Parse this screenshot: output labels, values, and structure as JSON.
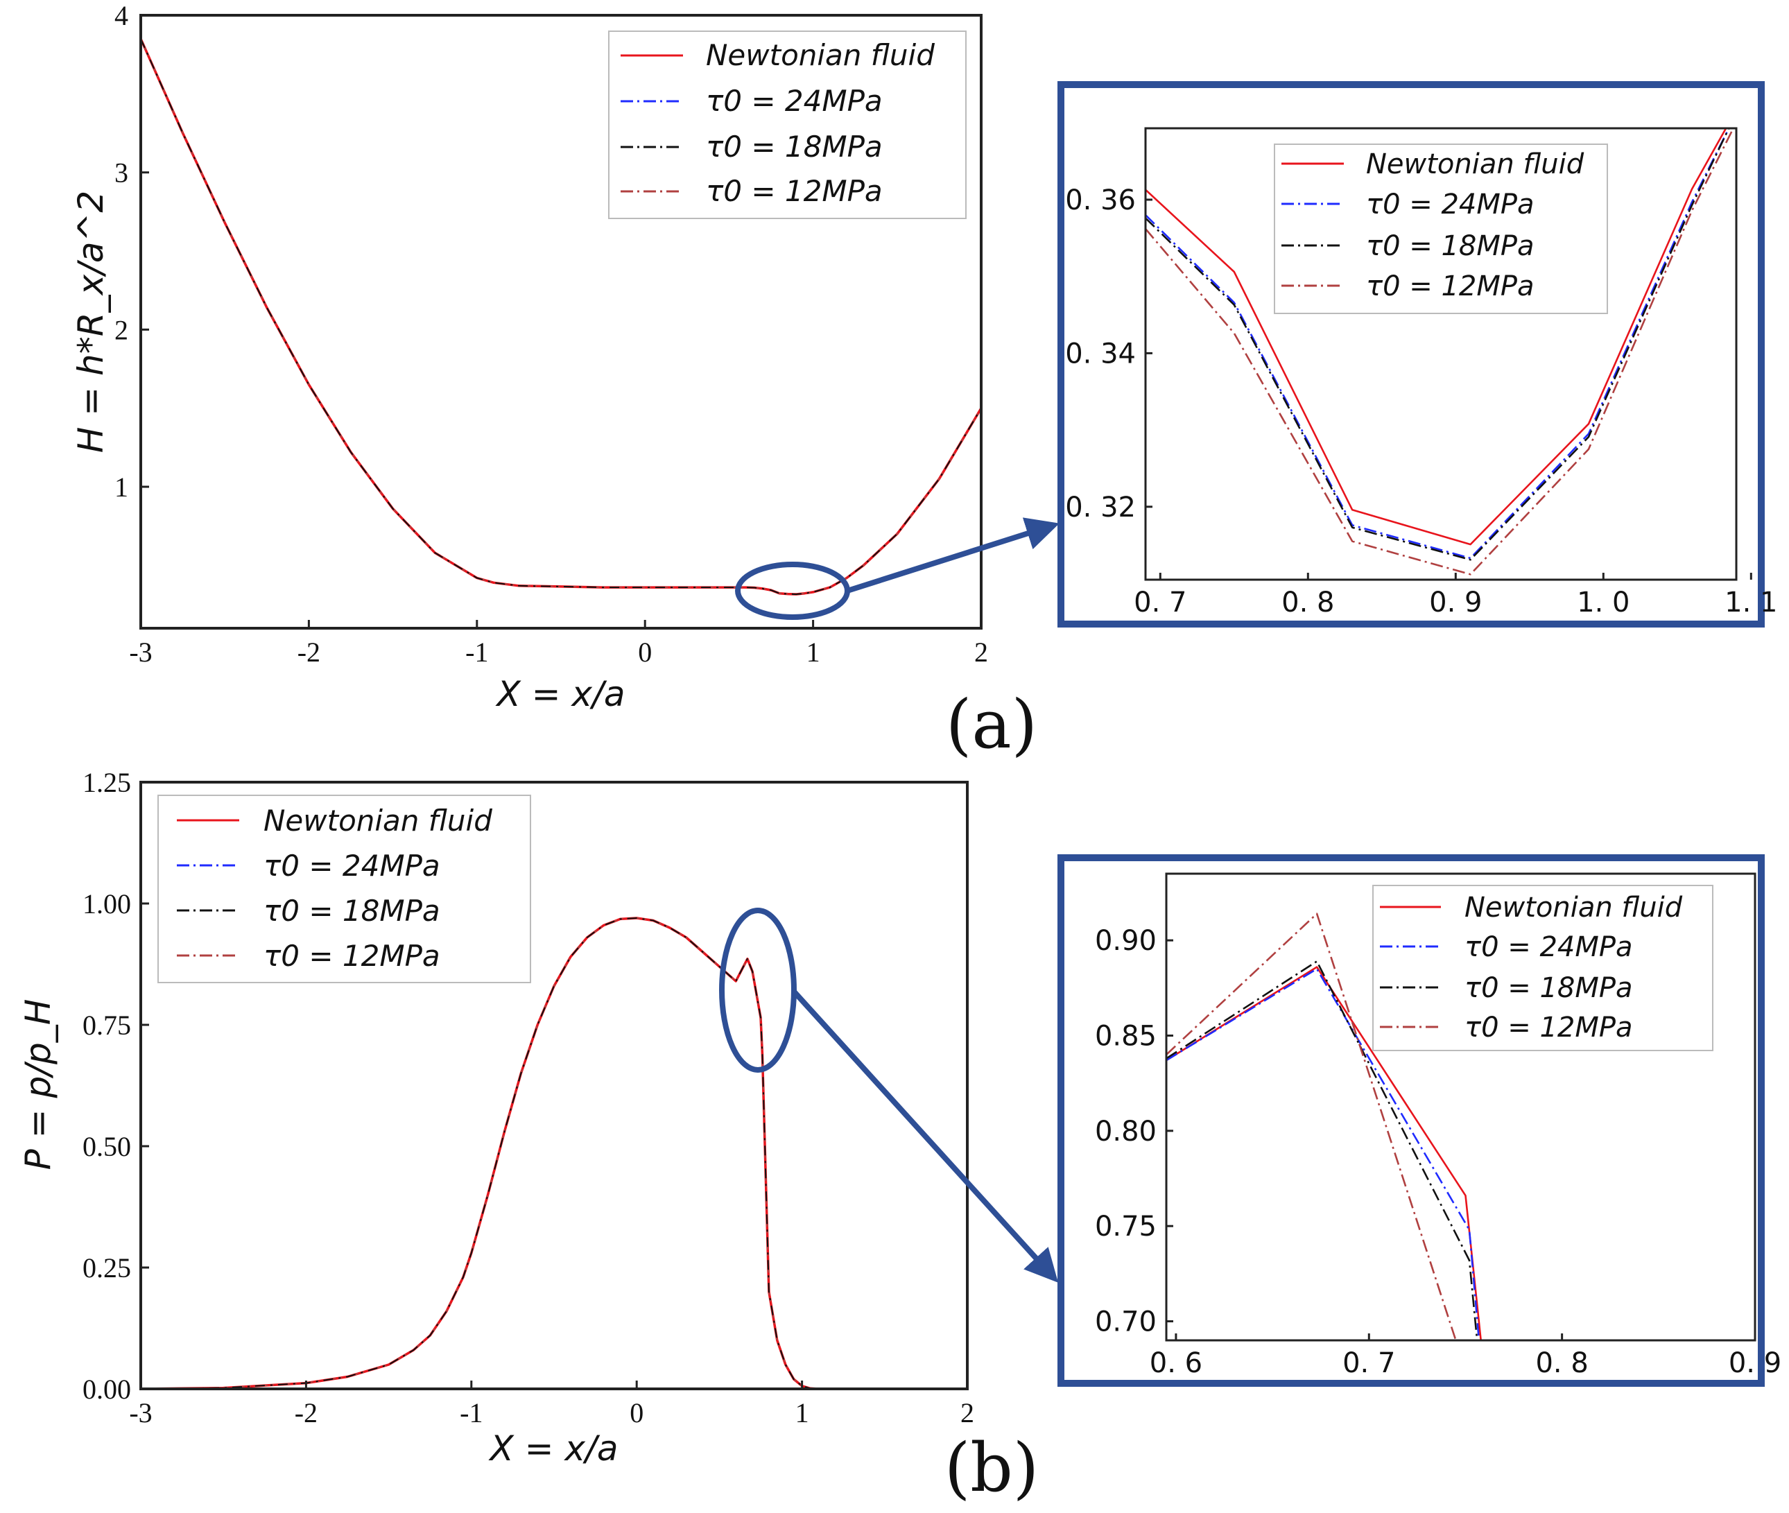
{
  "panel_a_label": "(a)",
  "panel_b_label": "(b)",
  "chart_data": [
    {
      "id": "a_main",
      "type": "line",
      "xlabel": "X = x/a",
      "ylabel": "H = h*R_x/a^2",
      "xlim": [
        -3,
        2
      ],
      "ylim": [
        0.1,
        4.0
      ],
      "xticks": [
        "-3",
        "-2",
        "-1",
        "0",
        "1",
        "2"
      ],
      "xtick_values": [
        -3,
        -2,
        -1,
        0,
        1,
        2
      ],
      "yticks": [
        "1",
        "2",
        "3",
        "4"
      ],
      "ytick_values": [
        1,
        2,
        3,
        4
      ],
      "legend": [
        "Newtonian fluid",
        "τ0 = 24MPa",
        "τ0 = 18MPa",
        "τ0 = 12MPa"
      ],
      "series": [
        {
          "name": "Newtonian fluid",
          "color": "#e8141c",
          "dash": "solid",
          "x": [
            -3,
            -2.75,
            -2.5,
            -2.25,
            -2,
            -1.75,
            -1.5,
            -1.25,
            -1.0,
            -0.9,
            -0.75,
            -0.5,
            -0.25,
            0,
            0.25,
            0.5,
            0.6,
            0.65,
            0.7,
            0.75,
            0.8,
            0.85,
            0.9,
            0.95,
            1.0,
            1.1,
            1.2,
            1.3,
            1.5,
            1.75,
            2.0
          ],
          "y": [
            3.85,
            3.25,
            2.68,
            2.14,
            1.65,
            1.22,
            0.86,
            0.58,
            0.42,
            0.39,
            0.37,
            0.365,
            0.36,
            0.36,
            0.36,
            0.36,
            0.36,
            0.358,
            0.352,
            0.342,
            0.322,
            0.318,
            0.316,
            0.322,
            0.33,
            0.36,
            0.42,
            0.5,
            0.7,
            1.05,
            1.5
          ]
        }
      ]
    },
    {
      "id": "a_inset",
      "type": "line",
      "xlim": [
        0.69,
        1.09
      ],
      "ylim": [
        0.3105,
        0.3693
      ],
      "xticks": [
        "0. 7",
        "0. 8",
        "0. 9",
        "1. 0",
        "1. 1"
      ],
      "xtick_values": [
        0.7,
        0.8,
        0.9,
        1.0,
        1.1
      ],
      "yticks": [
        "0. 32",
        "0. 34",
        "0. 36"
      ],
      "ytick_values": [
        0.32,
        0.34,
        0.36
      ],
      "legend": [
        "Newtonian fluid",
        "τ0 = 24MPa",
        "τ0 = 18MPa",
        "τ0 = 12MPa"
      ],
      "series": [
        {
          "name": "Newtonian fluid",
          "color": "#e8141c",
          "dash": "solid",
          "x": [
            0.69,
            0.75,
            0.83,
            0.91,
            0.99,
            1.06,
            1.083
          ],
          "y": [
            0.3613,
            0.3506,
            0.3196,
            0.3151,
            0.3308,
            0.3614,
            0.3693
          ]
        },
        {
          "name": "τ0 = 24MPa",
          "color": "#1f2bff",
          "dash": "dashdot",
          "x": [
            0.69,
            0.75,
            0.83,
            0.91,
            0.99,
            1.06,
            1.085
          ],
          "y": [
            0.358,
            0.3466,
            0.3176,
            0.3133,
            0.3295,
            0.3597,
            0.3693
          ]
        },
        {
          "name": "τ0 = 18MPa",
          "color": "#111111",
          "dash": "dashdot",
          "x": [
            0.69,
            0.75,
            0.83,
            0.91,
            0.99,
            1.06,
            1.085
          ],
          "y": [
            0.3576,
            0.3463,
            0.3173,
            0.3131,
            0.3291,
            0.3593,
            0.3693
          ]
        },
        {
          "name": "τ0 = 12MPa",
          "color": "#b04040",
          "dash": "dashdot",
          "x": [
            0.69,
            0.75,
            0.83,
            0.91,
            0.99,
            1.06,
            1.088
          ],
          "y": [
            0.3562,
            0.3426,
            0.3155,
            0.3112,
            0.3275,
            0.3586,
            0.3693
          ]
        }
      ]
    },
    {
      "id": "b_main",
      "type": "line",
      "xlabel": "X = x/a",
      "ylabel": "P = p/p_H",
      "xlim": [
        -3,
        2
      ],
      "ylim": [
        0,
        1.25
      ],
      "xticks": [
        "-3",
        "-2",
        "-1",
        "0",
        "1",
        "2"
      ],
      "xtick_values": [
        -3,
        -2,
        -1,
        0,
        1,
        2
      ],
      "yticks": [
        "0.00",
        "0.25",
        "0.50",
        "0.75",
        "1.00",
        "1.25"
      ],
      "ytick_values": [
        0,
        0.25,
        0.5,
        0.75,
        1.0,
        1.25
      ],
      "legend": [
        "Newtonian fluid",
        "τ0 = 24MPa",
        "τ0 = 18MPa",
        "τ0 = 12MPa"
      ],
      "series": [
        {
          "name": "Newtonian fluid",
          "color": "#e8141c",
          "dash": "solid",
          "x": [
            -3,
            -2.5,
            -2.0,
            -1.75,
            -1.5,
            -1.35,
            -1.25,
            -1.15,
            -1.05,
            -1.0,
            -0.9,
            -0.8,
            -0.7,
            -0.6,
            -0.5,
            -0.4,
            -0.3,
            -0.2,
            -0.1,
            0,
            0.1,
            0.2,
            0.3,
            0.4,
            0.5,
            0.6,
            0.67,
            0.7,
            0.75,
            0.76,
            0.8,
            0.85,
            0.9,
            0.95,
            1.0,
            1.05,
            1.1,
            2.0
          ],
          "y": [
            0,
            0.002,
            0.012,
            0.025,
            0.05,
            0.08,
            0.11,
            0.16,
            0.23,
            0.28,
            0.4,
            0.53,
            0.65,
            0.75,
            0.83,
            0.89,
            0.93,
            0.955,
            0.968,
            0.97,
            0.965,
            0.95,
            0.93,
            0.9,
            0.87,
            0.84,
            0.886,
            0.86,
            0.765,
            0.69,
            0.2,
            0.1,
            0.05,
            0.02,
            0.006,
            0.001,
            0,
            0
          ]
        }
      ]
    },
    {
      "id": "b_inset",
      "type": "line",
      "xlim": [
        0.595,
        0.9
      ],
      "ylim": [
        0.69,
        0.935
      ],
      "xticks": [
        "0. 6",
        "0. 7",
        "0. 8",
        "0. 9"
      ],
      "xtick_values": [
        0.6,
        0.7,
        0.8,
        0.9
      ],
      "yticks": [
        "0.70",
        "0.75",
        "0.80",
        "0.85",
        "0.90"
      ],
      "ytick_values": [
        0.7,
        0.75,
        0.8,
        0.85,
        0.9
      ],
      "legend": [
        "Newtonian fluid",
        "τ0 = 24MPa",
        "τ0 = 18MPa",
        "τ0 = 12MPa"
      ],
      "series": [
        {
          "name": "Newtonian fluid",
          "color": "#e8141c",
          "dash": "solid",
          "x": [
            0.595,
            0.673,
            0.75,
            0.758
          ],
          "y": [
            0.837,
            0.886,
            0.766,
            0.69
          ]
        },
        {
          "name": "τ0 = 24MPa",
          "color": "#1f2bff",
          "dash": "dashdot",
          "x": [
            0.595,
            0.673,
            0.752,
            0.757
          ],
          "y": [
            0.837,
            0.885,
            0.748,
            0.69
          ]
        },
        {
          "name": "τ0 = 18MPa",
          "color": "#111111",
          "dash": "dashdot",
          "x": [
            0.595,
            0.673,
            0.752,
            0.756
          ],
          "y": [
            0.838,
            0.889,
            0.732,
            0.69
          ]
        },
        {
          "name": "τ0 = 12MPa",
          "color": "#b04040",
          "dash": "dashdot",
          "x": [
            0.595,
            0.673,
            0.745
          ],
          "y": [
            0.84,
            0.914,
            0.69
          ]
        }
      ]
    }
  ]
}
